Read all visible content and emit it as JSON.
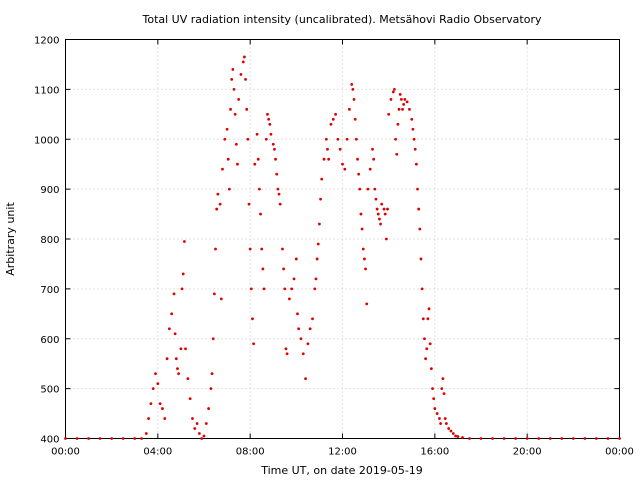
{
  "chart_data": {
    "type": "scatter",
    "title": "Total UV radiation intensity (uncalibrated). Metsähovi Radio Observatory",
    "xlabel": "Time UT, on date 2019-05-19",
    "ylabel": "Arbitrary unit",
    "xlim": [
      0,
      24
    ],
    "ylim": [
      400,
      1200
    ],
    "x_ticks": [
      0,
      4,
      8,
      12,
      16,
      20,
      24
    ],
    "x_tick_labels": [
      "00:00",
      "04:00",
      "08:00",
      "12:00",
      "16:00",
      "20:00",
      "00:00"
    ],
    "y_ticks": [
      400,
      500,
      600,
      700,
      800,
      900,
      1000,
      1100,
      1200
    ],
    "y_tick_labels": [
      "400",
      "500",
      "600",
      "700",
      "800",
      "900",
      "1000",
      "1100",
      "1200"
    ],
    "grid": true,
    "series": [
      {
        "color": "#e00000",
        "marker": "dot",
        "points": [
          [
            0.0,
            400
          ],
          [
            0.5,
            400
          ],
          [
            1.0,
            400
          ],
          [
            1.5,
            400
          ],
          [
            2.0,
            400
          ],
          [
            2.5,
            400
          ],
          [
            3.0,
            400
          ],
          [
            3.3,
            400
          ],
          [
            3.5,
            410
          ],
          [
            3.6,
            440
          ],
          [
            3.7,
            470
          ],
          [
            3.8,
            500
          ],
          [
            3.9,
            530
          ],
          [
            4.0,
            510
          ],
          [
            4.1,
            470
          ],
          [
            4.2,
            460
          ],
          [
            4.3,
            440
          ],
          [
            4.4,
            560
          ],
          [
            4.5,
            620
          ],
          [
            4.6,
            650
          ],
          [
            4.7,
            690
          ],
          [
            4.75,
            610
          ],
          [
            4.8,
            560
          ],
          [
            4.85,
            540
          ],
          [
            4.9,
            530
          ],
          [
            5.0,
            580
          ],
          [
            5.05,
            700
          ],
          [
            5.1,
            730
          ],
          [
            5.15,
            795
          ],
          [
            5.2,
            580
          ],
          [
            5.3,
            520
          ],
          [
            5.4,
            480
          ],
          [
            5.5,
            440
          ],
          [
            5.6,
            420
          ],
          [
            5.7,
            430
          ],
          [
            5.8,
            410
          ],
          [
            5.9,
            400
          ],
          [
            6.0,
            405
          ],
          [
            6.1,
            430
          ],
          [
            6.2,
            460
          ],
          [
            6.3,
            500
          ],
          [
            6.35,
            530
          ],
          [
            6.4,
            600
          ],
          [
            6.45,
            690
          ],
          [
            6.5,
            780
          ],
          [
            6.55,
            860
          ],
          [
            6.6,
            890
          ],
          [
            6.7,
            870
          ],
          [
            6.75,
            680
          ],
          [
            6.8,
            940
          ],
          [
            6.9,
            1000
          ],
          [
            7.0,
            1020
          ],
          [
            7.05,
            960
          ],
          [
            7.1,
            900
          ],
          [
            7.15,
            1060
          ],
          [
            7.2,
            1120
          ],
          [
            7.25,
            1140
          ],
          [
            7.3,
            1100
          ],
          [
            7.35,
            1050
          ],
          [
            7.4,
            990
          ],
          [
            7.45,
            950
          ],
          [
            7.5,
            1080
          ],
          [
            7.6,
            1130
          ],
          [
            7.7,
            1155
          ],
          [
            7.75,
            1165
          ],
          [
            7.8,
            1120
          ],
          [
            7.85,
            1060
          ],
          [
            7.9,
            1000
          ],
          [
            7.95,
            870
          ],
          [
            8.0,
            780
          ],
          [
            8.05,
            700
          ],
          [
            8.1,
            640
          ],
          [
            8.15,
            590
          ],
          [
            8.2,
            950
          ],
          [
            8.3,
            1010
          ],
          [
            8.35,
            960
          ],
          [
            8.4,
            900
          ],
          [
            8.45,
            850
          ],
          [
            8.5,
            780
          ],
          [
            8.55,
            740
          ],
          [
            8.6,
            700
          ],
          [
            8.7,
            1000
          ],
          [
            8.75,
            1050
          ],
          [
            8.8,
            1040
          ],
          [
            8.85,
            1030
          ],
          [
            8.9,
            1010
          ],
          [
            9.0,
            990
          ],
          [
            9.05,
            980
          ],
          [
            9.1,
            960
          ],
          [
            9.15,
            930
          ],
          [
            9.2,
            900
          ],
          [
            9.25,
            890
          ],
          [
            9.3,
            870
          ],
          [
            9.4,
            780
          ],
          [
            9.45,
            740
          ],
          [
            9.5,
            700
          ],
          [
            9.55,
            580
          ],
          [
            9.6,
            570
          ],
          [
            9.7,
            680
          ],
          [
            9.8,
            700
          ],
          [
            9.9,
            720
          ],
          [
            10.0,
            760
          ],
          [
            10.05,
            650
          ],
          [
            10.1,
            620
          ],
          [
            10.2,
            600
          ],
          [
            10.3,
            570
          ],
          [
            10.4,
            520
          ],
          [
            10.5,
            590
          ],
          [
            10.6,
            620
          ],
          [
            10.7,
            640
          ],
          [
            10.8,
            700
          ],
          [
            10.85,
            720
          ],
          [
            10.9,
            760
          ],
          [
            10.95,
            790
          ],
          [
            11.0,
            830
          ],
          [
            11.05,
            880
          ],
          [
            11.1,
            920
          ],
          [
            11.2,
            960
          ],
          [
            11.3,
            1000
          ],
          [
            11.35,
            980
          ],
          [
            11.4,
            960
          ],
          [
            11.5,
            1030
          ],
          [
            11.6,
            1040
          ],
          [
            11.7,
            1050
          ],
          [
            11.8,
            1000
          ],
          [
            11.9,
            980
          ],
          [
            12.0,
            950
          ],
          [
            12.1,
            940
          ],
          [
            12.2,
            1000
          ],
          [
            12.3,
            1060
          ],
          [
            12.4,
            1110
          ],
          [
            12.45,
            1100
          ],
          [
            12.5,
            1080
          ],
          [
            12.55,
            1040
          ],
          [
            12.6,
            1000
          ],
          [
            12.65,
            960
          ],
          [
            12.7,
            930
          ],
          [
            12.75,
            900
          ],
          [
            12.8,
            850
          ],
          [
            12.85,
            820
          ],
          [
            12.9,
            780
          ],
          [
            12.95,
            760
          ],
          [
            13.0,
            740
          ],
          [
            13.05,
            670
          ],
          [
            13.1,
            900
          ],
          [
            13.2,
            940
          ],
          [
            13.3,
            980
          ],
          [
            13.35,
            960
          ],
          [
            13.4,
            900
          ],
          [
            13.45,
            880
          ],
          [
            13.5,
            860
          ],
          [
            13.55,
            850
          ],
          [
            13.6,
            840
          ],
          [
            13.65,
            830
          ],
          [
            13.7,
            870
          ],
          [
            13.8,
            860
          ],
          [
            13.85,
            850
          ],
          [
            13.9,
            800
          ],
          [
            13.95,
            860
          ],
          [
            14.0,
            1050
          ],
          [
            14.1,
            1080
          ],
          [
            14.2,
            1095
          ],
          [
            14.25,
            1100
          ],
          [
            14.3,
            1000
          ],
          [
            14.35,
            970
          ],
          [
            14.4,
            1030
          ],
          [
            14.45,
            1060
          ],
          [
            14.5,
            1090
          ],
          [
            14.55,
            1080
          ],
          [
            14.6,
            1060
          ],
          [
            14.65,
            1070
          ],
          [
            14.7,
            1080
          ],
          [
            14.8,
            1075
          ],
          [
            14.9,
            1060
          ],
          [
            15.0,
            1040
          ],
          [
            15.05,
            1020
          ],
          [
            15.1,
            1000
          ],
          [
            15.15,
            980
          ],
          [
            15.2,
            950
          ],
          [
            15.25,
            900
          ],
          [
            15.3,
            860
          ],
          [
            15.35,
            820
          ],
          [
            15.4,
            760
          ],
          [
            15.45,
            700
          ],
          [
            15.5,
            640
          ],
          [
            15.55,
            600
          ],
          [
            15.6,
            560
          ],
          [
            15.65,
            580
          ],
          [
            15.7,
            640
          ],
          [
            15.75,
            660
          ],
          [
            15.8,
            590
          ],
          [
            15.85,
            540
          ],
          [
            15.9,
            500
          ],
          [
            15.95,
            480
          ],
          [
            16.0,
            460
          ],
          [
            16.1,
            450
          ],
          [
            16.2,
            440
          ],
          [
            16.25,
            430
          ],
          [
            16.3,
            500
          ],
          [
            16.35,
            520
          ],
          [
            16.4,
            490
          ],
          [
            16.45,
            440
          ],
          [
            16.5,
            430
          ],
          [
            16.6,
            420
          ],
          [
            16.7,
            415
          ],
          [
            16.8,
            410
          ],
          [
            16.9,
            405
          ],
          [
            17.0,
            404
          ],
          [
            17.2,
            402
          ],
          [
            17.5,
            400
          ],
          [
            18.0,
            400
          ],
          [
            18.5,
            400
          ],
          [
            19.0,
            400
          ],
          [
            19.5,
            400
          ],
          [
            20.0,
            400
          ],
          [
            20.5,
            400
          ],
          [
            21.0,
            400
          ],
          [
            21.5,
            400
          ],
          [
            22.0,
            400
          ],
          [
            22.5,
            400
          ],
          [
            23.0,
            400
          ],
          [
            23.5,
            400
          ],
          [
            24.0,
            400
          ]
        ]
      }
    ]
  }
}
